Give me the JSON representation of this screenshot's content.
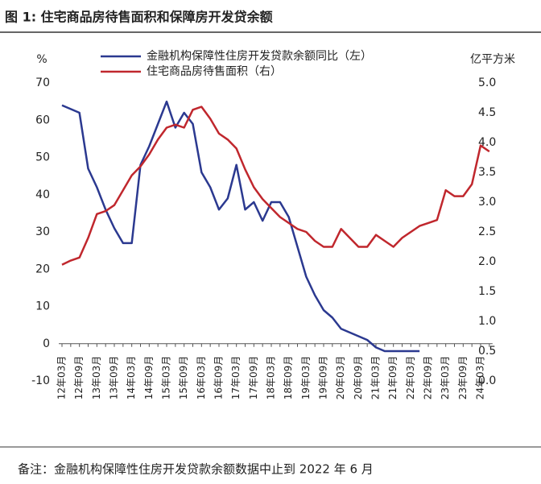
{
  "chart_data": {
    "type": "line",
    "title": "图 1: 住宅商品房待售面积和保障房开发贷余额",
    "y_label": "%",
    "y2_label": "亿平方米",
    "note": "备注：金融机构保障性住房开发贷款余额数据中止到 2022 年 6 月",
    "categories": [
      "12年03月",
      null,
      "12年09月",
      null,
      "13年03月",
      null,
      "13年09月",
      null,
      "14年03月",
      null,
      "14年09月",
      null,
      "15年03月",
      null,
      "15年09月",
      null,
      "16年03月",
      null,
      "16年09月",
      null,
      "17年03月",
      null,
      "17年09月",
      null,
      "18年03月",
      null,
      "18年09月",
      null,
      "19年03月",
      null,
      "19年09月",
      null,
      "20年03月",
      null,
      "20年09月",
      null,
      "21年03月",
      null,
      "21年09月",
      null,
      "22年03月",
      null,
      "22年09月",
      null,
      "23年03月",
      null,
      "23年09月",
      null,
      "24年03月",
      null
    ],
    "series": [
      {
        "name": "金融机构保障性住房开发贷款余额同比（左）",
        "color": "#2b3990",
        "values": [
          64,
          63,
          62,
          47,
          42,
          36,
          31,
          27,
          27,
          48,
          53,
          59,
          65,
          58,
          62,
          59,
          46,
          42,
          36,
          39,
          48,
          36,
          38,
          33,
          38,
          38,
          34,
          26,
          18,
          13,
          9,
          7,
          4,
          3,
          2,
          1,
          -1,
          -2,
          -2,
          -2,
          -2,
          -2,
          null,
          null,
          null,
          null,
          null,
          null,
          null,
          null
        ]
      },
      {
        "name": "住宅商品房待售面积（右）",
        "color": "#c0272d",
        "axis": "y2",
        "values": [
          1.95,
          2.02,
          2.07,
          2.4,
          2.8,
          2.85,
          2.95,
          3.2,
          3.45,
          3.6,
          3.8,
          4.05,
          4.25,
          4.3,
          4.25,
          4.55,
          4.6,
          4.4,
          4.15,
          4.05,
          3.9,
          3.55,
          3.25,
          3.05,
          2.9,
          2.75,
          2.65,
          2.55,
          2.5,
          2.35,
          2.25,
          2.25,
          2.55,
          2.4,
          2.25,
          2.25,
          2.45,
          2.35,
          2.25,
          2.4,
          2.5,
          2.6,
          2.65,
          2.7,
          3.2,
          3.1,
          3.1,
          3.3,
          3.95,
          3.85
        ]
      }
    ],
    "ylim": [
      -10,
      70
    ],
    "yticks": [
      -10,
      0,
      10,
      20,
      30,
      40,
      50,
      60,
      70
    ],
    "y2lim": [
      0,
      5
    ],
    "y2ticks": [
      {
        "value": 0,
        "label": "0.0"
      },
      0.5,
      {
        "value": 1,
        "label": "1.0"
      },
      1.5,
      {
        "value": 2,
        "label": "2.0"
      },
      2.5,
      {
        "value": 3,
        "label": "3.0"
      },
      3.5,
      {
        "value": 4,
        "label": "4.0"
      },
      4.5,
      {
        "value": 5,
        "label": "5.0"
      }
    ],
    "grid": false
  }
}
